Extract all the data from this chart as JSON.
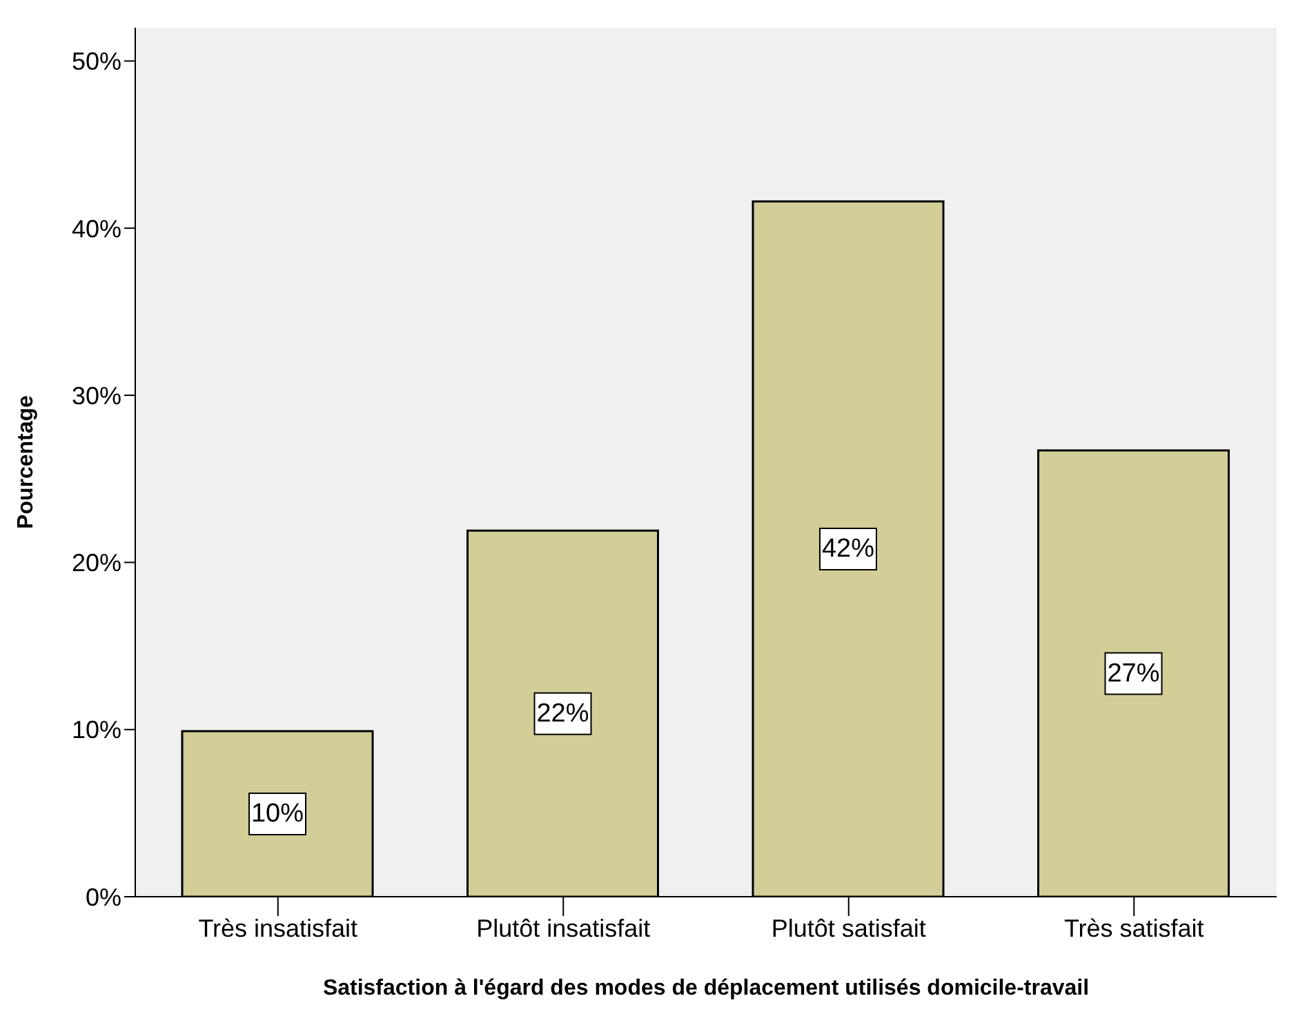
{
  "chart_data": {
    "type": "bar",
    "xlabel": "Satisfaction à l'égard des modes de déplacement utilisés domicile-travail",
    "ylabel": "Pourcentage",
    "categories": [
      "Très insatisfait",
      "Plutôt insatisfait",
      "Plutôt satisfait",
      "Très satisfait"
    ],
    "values": [
      9.9,
      21.9,
      41.6,
      26.7
    ],
    "value_labels": [
      "10%",
      "22%",
      "42%",
      "27%"
    ],
    "color": "#d3ce97",
    "ylim": [
      0,
      52
    ],
    "yticks": [
      {
        "value": 0,
        "label": "0%"
      },
      {
        "value": 10,
        "label": "10%"
      },
      {
        "value": 20,
        "label": "20%"
      },
      {
        "value": 30,
        "label": "30%"
      },
      {
        "value": 40,
        "label": "40%"
      },
      {
        "value": 50,
        "label": "50%"
      }
    ],
    "grid": false
  }
}
